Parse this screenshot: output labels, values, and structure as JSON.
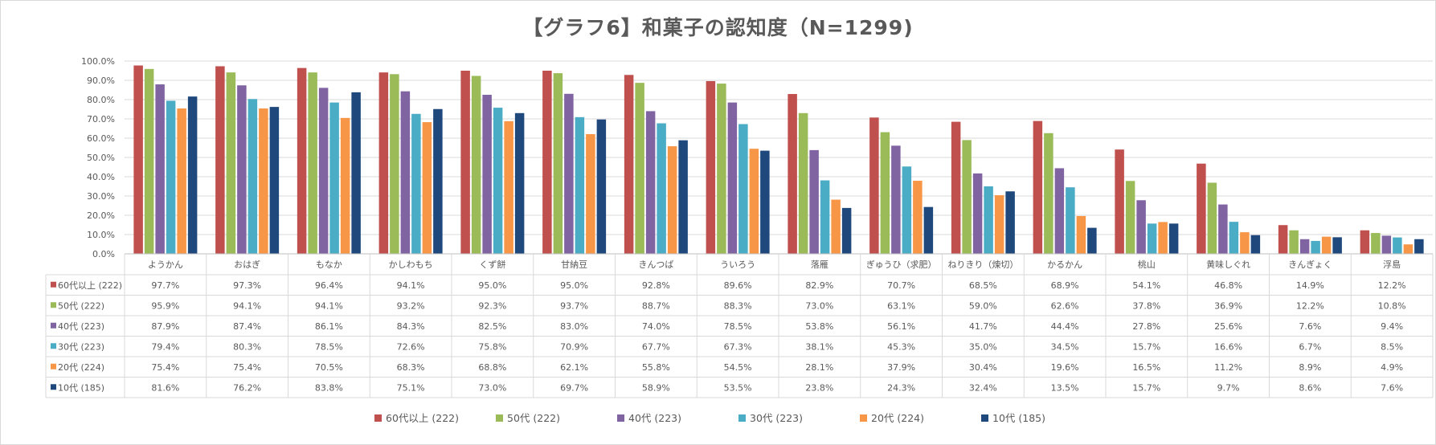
{
  "chart_data": {
    "type": "bar",
    "title": "【グラフ6】和菓子の認知度（N=1299)",
    "xlabel": "",
    "ylabel": "",
    "ylim": [
      0,
      100
    ],
    "yticks": [
      "0.0%",
      "10.0%",
      "20.0%",
      "30.0%",
      "40.0%",
      "50.0%",
      "60.0%",
      "70.0%",
      "80.0%",
      "90.0%",
      "100.0%"
    ],
    "grid": true,
    "legend_position": "bottom",
    "data_table": true,
    "categories": [
      "ようかん",
      "おはぎ",
      "もなか",
      "かしわもち",
      "くず餅",
      "甘納豆",
      "きんつば",
      "ういろう",
      "落雁",
      "ぎゅうひ（求肥）",
      "ねりきり（煉切）",
      "かるかん",
      "桃山",
      "黄味しぐれ",
      "きんぎょく",
      "浮島"
    ],
    "series": [
      {
        "name": "60代以上 (222)",
        "color": "#c0504d",
        "values": [
          97.7,
          97.3,
          96.4,
          94.1,
          95.0,
          95.0,
          92.8,
          89.6,
          82.9,
          70.7,
          68.5,
          68.9,
          54.1,
          46.8,
          14.9,
          12.2
        ],
        "labels": [
          "97.7%",
          "97.3%",
          "96.4%",
          "94.1%",
          "95.0%",
          "95.0%",
          "92.8%",
          "89.6%",
          "82.9%",
          "70.7%",
          "68.5%",
          "68.9%",
          "54.1%",
          "46.8%",
          "14.9%",
          "12.2%"
        ]
      },
      {
        "name": "50代 (222)",
        "color": "#9bbb59",
        "values": [
          95.9,
          94.1,
          94.1,
          93.2,
          92.3,
          93.7,
          88.7,
          88.3,
          73.0,
          63.1,
          59.0,
          62.6,
          37.8,
          36.9,
          12.2,
          10.8
        ],
        "labels": [
          "95.9%",
          "94.1%",
          "94.1%",
          "93.2%",
          "92.3%",
          "93.7%",
          "88.7%",
          "88.3%",
          "73.0%",
          "63.1%",
          "59.0%",
          "62.6%",
          "37.8%",
          "36.9%",
          "12.2%",
          "10.8%"
        ]
      },
      {
        "name": "40代 (223)",
        "color": "#8064a2",
        "values": [
          87.9,
          87.4,
          86.1,
          84.3,
          82.5,
          83.0,
          74.0,
          78.5,
          53.8,
          56.1,
          41.7,
          44.4,
          27.8,
          25.6,
          7.6,
          9.4
        ],
        "labels": [
          "87.9%",
          "87.4%",
          "86.1%",
          "84.3%",
          "82.5%",
          "83.0%",
          "74.0%",
          "78.5%",
          "53.8%",
          "56.1%",
          "41.7%",
          "44.4%",
          "27.8%",
          "25.6%",
          "7.6%",
          "9.4%"
        ]
      },
      {
        "name": "30代 (223)",
        "color": "#4bacc6",
        "values": [
          79.4,
          80.3,
          78.5,
          72.6,
          75.8,
          70.9,
          67.7,
          67.3,
          38.1,
          45.3,
          35.0,
          34.5,
          15.7,
          16.6,
          6.7,
          8.5
        ],
        "labels": [
          "79.4%",
          "80.3%",
          "78.5%",
          "72.6%",
          "75.8%",
          "70.9%",
          "67.7%",
          "67.3%",
          "38.1%",
          "45.3%",
          "35.0%",
          "34.5%",
          "15.7%",
          "16.6%",
          "6.7%",
          "8.5%"
        ]
      },
      {
        "name": "20代 (224)",
        "color": "#f79646",
        "values": [
          75.4,
          75.4,
          70.5,
          68.3,
          68.8,
          62.1,
          55.8,
          54.5,
          28.1,
          37.9,
          30.4,
          19.6,
          16.5,
          11.2,
          8.9,
          4.9
        ],
        "labels": [
          "75.4%",
          "75.4%",
          "70.5%",
          "68.3%",
          "68.8%",
          "62.1%",
          "55.8%",
          "54.5%",
          "28.1%",
          "37.9%",
          "30.4%",
          "19.6%",
          "16.5%",
          "11.2%",
          "8.9%",
          "4.9%"
        ]
      },
      {
        "name": "10代 (185)",
        "color": "#1f497d",
        "values": [
          81.6,
          76.2,
          83.8,
          75.1,
          73.0,
          69.7,
          58.9,
          53.5,
          23.8,
          24.3,
          32.4,
          13.5,
          15.7,
          9.7,
          8.6,
          7.6
        ],
        "labels": [
          "81.6%",
          "76.2%",
          "83.8%",
          "75.1%",
          "73.0%",
          "69.7%",
          "58.9%",
          "53.5%",
          "23.8%",
          "24.3%",
          "32.4%",
          "13.5%",
          "15.7%",
          "9.7%",
          "8.6%",
          "7.6%"
        ]
      }
    ]
  }
}
